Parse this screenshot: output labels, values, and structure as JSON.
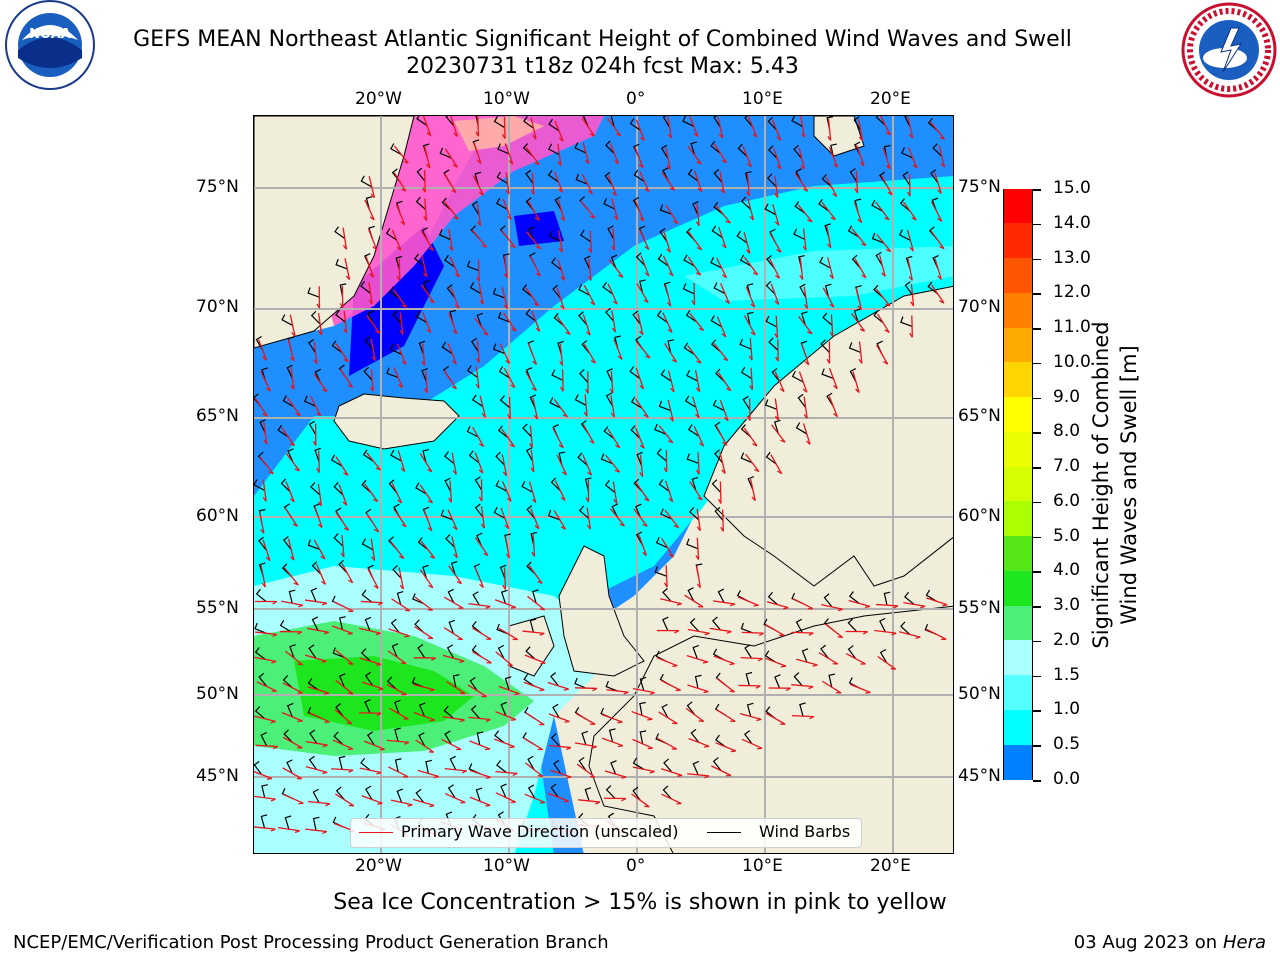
{
  "header": {
    "title_line1": "GEFS MEAN Northeast Atlantic Significant Height of Combined Wind Waves and Swell",
    "title_line2": "20230731 t18z 024h fcst   Max: 5.43"
  },
  "map": {
    "lon_ticks": [
      "20°W",
      "10°W",
      "0°",
      "10°E",
      "20°E"
    ],
    "lat_ticks": [
      "75°N",
      "70°N",
      "65°N",
      "60°N",
      "55°N",
      "50°N",
      "45°N"
    ],
    "colors": {
      "land": "#f0eedb",
      "grid": "#b0b0b0",
      "wave_arrow": "#e8151b",
      "barb": "#000000"
    }
  },
  "colorbar": {
    "title_line1": "Significant Height of Combined",
    "title_line2": "Wind Waves and Swell [m]",
    "labels": [
      "15.0",
      "14.0",
      "13.0",
      "12.0",
      "11.0",
      "10.0",
      "9.0",
      "8.0",
      "7.0",
      "6.0",
      "5.0",
      "4.0",
      "3.0",
      "2.0",
      "1.5",
      "1.0",
      "0.5",
      "0.0"
    ],
    "colors": [
      "#ff0000",
      "#ff2a00",
      "#ff5500",
      "#ff8000",
      "#ffaa00",
      "#ffd500",
      "#ffff00",
      "#eaff00",
      "#d4ff00",
      "#aaff00",
      "#55e61a",
      "#1ee61e",
      "#4cf078",
      "#aaffff",
      "#55ffff",
      "#00ffff",
      "#0080ff",
      "#0000ff"
    ]
  },
  "legend": {
    "wave_label": "Primary Wave Direction (unscaled)",
    "barb_label": "Wind Barbs"
  },
  "subtitle": "Sea Ice Concentration > 15% is shown in pink to yellow",
  "footer": {
    "left": "NCEP/EMC/Verification Post Processing Product Generation Branch",
    "date": "03 Aug 2023 on",
    "host": "Hera"
  }
}
